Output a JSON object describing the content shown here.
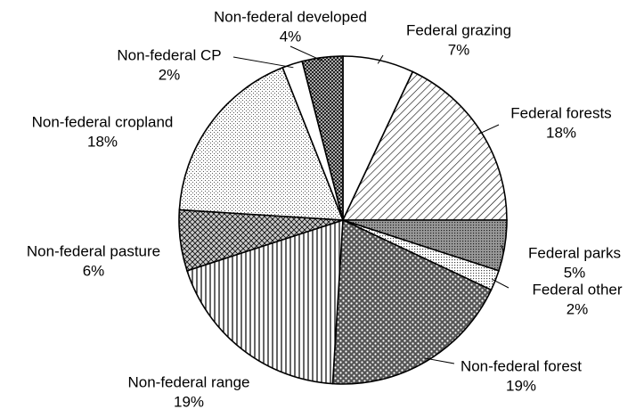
{
  "chart_data": {
    "type": "pie",
    "categories": [
      "Federal grazing",
      "Federal forests",
      "Federal parks",
      "Federal other",
      "Non-federal forest",
      "Non-federal range",
      "Non-federal pasture",
      "Non-federal cropland",
      "Non-federal CP",
      "Non-federal developed"
    ],
    "values": [
      7,
      18,
      5,
      2,
      19,
      19,
      6,
      18,
      2,
      4
    ],
    "value_labels": [
      "7%",
      "18%",
      "5%",
      "2%",
      "19%",
      "19%",
      "6%",
      "18%",
      "2%",
      "4%"
    ]
  }
}
